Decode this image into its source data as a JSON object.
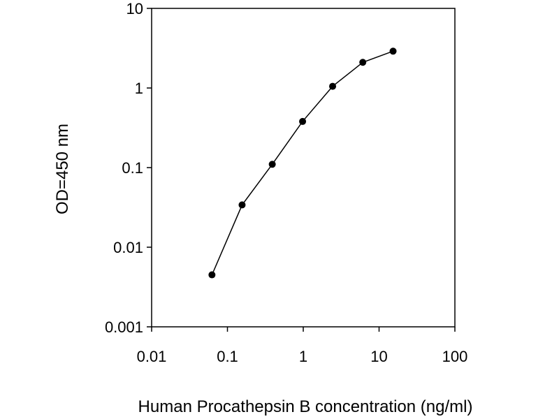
{
  "chart_data": {
    "type": "line",
    "title": "",
    "xlabel": "Human Procathepsin B concentration (ng/ml)",
    "ylabel": "OD=450 nm",
    "xscale": "log",
    "yscale": "log",
    "xlim": [
      0.01,
      100
    ],
    "ylim": [
      0.001,
      10
    ],
    "xticks": [
      "0.01",
      "0.1",
      "1",
      "10",
      "100"
    ],
    "yticks": [
      "0.001",
      "0.01",
      "0.1",
      "1",
      "10"
    ],
    "grid": false,
    "legend": "none",
    "marker": "circle",
    "series": [
      {
        "x": [
          0.0625,
          0.156,
          0.39,
          0.98,
          2.44,
          6.1,
          15.3
        ],
        "y": [
          0.0045,
          0.034,
          0.11,
          0.38,
          1.05,
          2.1,
          2.9
        ]
      }
    ],
    "colors": {
      "line": "#000000",
      "marker": "#000000",
      "axis": "#000000"
    }
  }
}
